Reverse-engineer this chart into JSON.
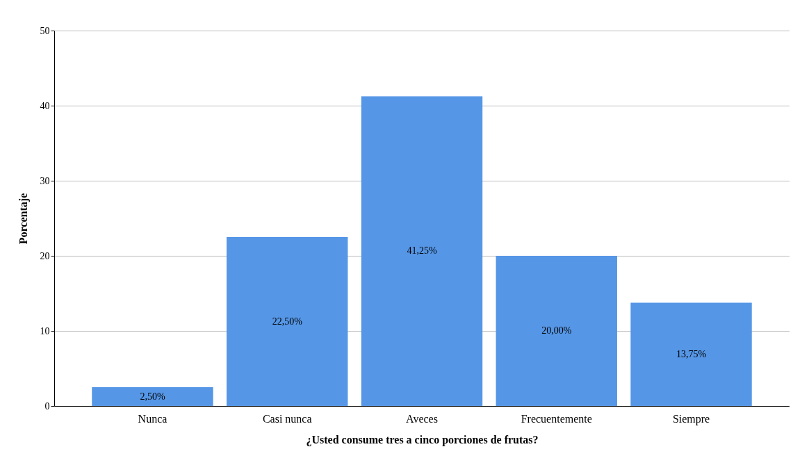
{
  "chart_data": {
    "type": "bar",
    "xlabel": "¿Usted consume tres a cinco porciones de frutas?",
    "ylabel": "Porcentaje",
    "categories": [
      "Nunca",
      "Casi nunca",
      "Aveces",
      "Frecuentemente",
      "Siempre"
    ],
    "values": [
      2.5,
      22.5,
      41.25,
      20,
      13.75
    ],
    "value_labels": [
      "2,50%",
      "22,50%",
      "41,25%",
      "20,00%",
      "13,75%"
    ],
    "color": "#5596e6",
    "ylim": [
      0,
      50
    ],
    "yticks": [
      0,
      10,
      20,
      30,
      40,
      50
    ],
    "grid": "y"
  }
}
